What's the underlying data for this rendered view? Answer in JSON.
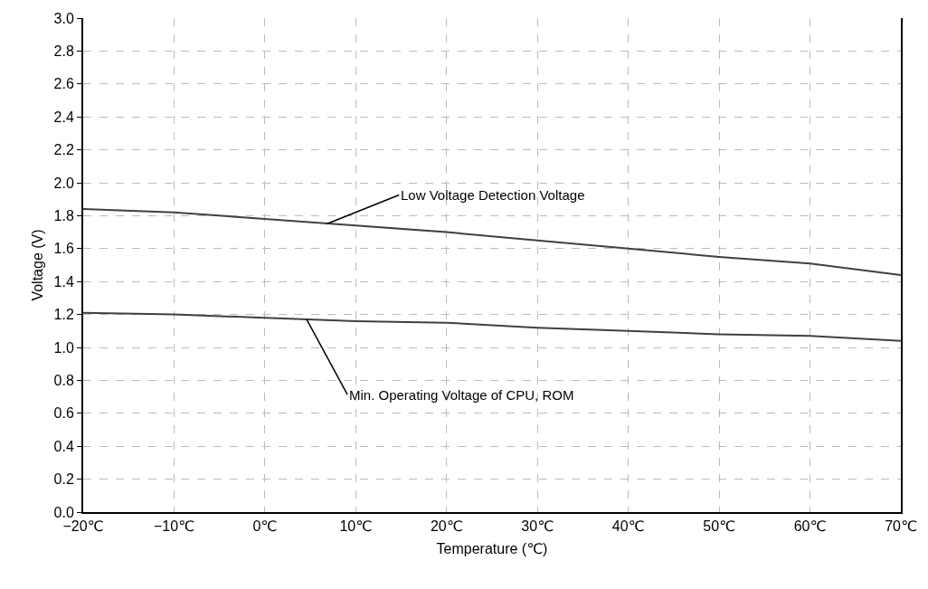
{
  "chart_data": {
    "type": "line",
    "xlabel": "Temperature (℃)",
    "ylabel": "Voltage (V)",
    "x": [
      -20,
      -10,
      0,
      10,
      20,
      30,
      40,
      50,
      60,
      70
    ],
    "series": [
      {
        "color": "#404040",
        "values": [
          1.84,
          1.82,
          1.78,
          1.74,
          1.7,
          1.65,
          1.6,
          1.55,
          1.51,
          1.44
        ]
      },
      {
        "color": "#404040",
        "values": [
          1.21,
          1.2,
          1.18,
          1.16,
          1.15,
          1.12,
          1.1,
          1.08,
          1.07,
          1.04
        ]
      }
    ],
    "annotations": [
      {
        "text": "Low Voltage Detection Voltage",
        "x": 6.8,
        "y": 1.75
      },
      {
        "text": "Min. Operating Voltage of CPU, ROM",
        "x": 4.6,
        "y": 1.17
      }
    ],
    "xlim": [
      -20,
      70
    ],
    "xticks": [
      {
        "value": -20,
        "label": "−20℃"
      },
      {
        "value": -10,
        "label": "−10℃"
      },
      {
        "value": 0,
        "label": "0℃"
      },
      {
        "value": 10,
        "label": "10℃"
      },
      {
        "value": 20,
        "label": "20℃"
      },
      {
        "value": 30,
        "label": "30℃"
      },
      {
        "value": 40,
        "label": "40℃"
      },
      {
        "value": 50,
        "label": "50℃"
      },
      {
        "value": 60,
        "label": "60℃"
      },
      {
        "value": 70,
        "label": "70℃"
      }
    ],
    "ylim": [
      0,
      3
    ],
    "yticks": [
      {
        "value": 0,
        "label": "0.0"
      },
      {
        "value": 0.2,
        "label": "0.2"
      },
      {
        "value": 0.4,
        "label": "0.4"
      },
      {
        "value": 0.6,
        "label": "0.6"
      },
      {
        "value": 0.8,
        "label": "0.8"
      },
      {
        "value": 1,
        "label": "1.0"
      },
      {
        "value": 1.2,
        "label": "1.2"
      },
      {
        "value": 1.4,
        "label": "1.4"
      },
      {
        "value": 1.6,
        "label": "1.6"
      },
      {
        "value": 1.8,
        "label": "1.8"
      },
      {
        "value": 2,
        "label": "2.0"
      },
      {
        "value": 2.2,
        "label": "2.2"
      },
      {
        "value": 2.4,
        "label": "2.4"
      },
      {
        "value": 2.6,
        "label": "2.6"
      },
      {
        "value": 2.8,
        "label": "2.8"
      },
      {
        "value": 3,
        "label": "3.0"
      }
    ],
    "grid": true,
    "marker": "none",
    "line_style": "solid"
  }
}
